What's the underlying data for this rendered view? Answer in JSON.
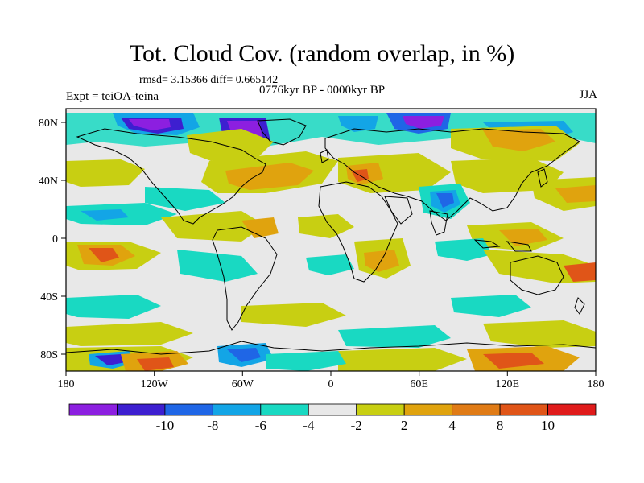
{
  "title": "Tot. Cloud Cov. (random overlap, in %)",
  "stats": "rmsd= 3.15366 diff= 0.665142",
  "experiment": "Expt = teiOA-teina",
  "period": "0776kyr BP - 0000kyr BP",
  "season": "JJA",
  "lon_ticks": [
    "180",
    "120W",
    "60W",
    "0",
    "60E",
    "120E",
    "180"
  ],
  "lat_ticks": [
    "80N",
    "40N",
    "0",
    "40S",
    "80S"
  ],
  "colorbar": {
    "labels": [
      "-10",
      "-8",
      "-6",
      "-4",
      "-2",
      "2",
      "4",
      "8",
      "10"
    ],
    "colors": [
      "#8c1fe0",
      "#3d1fd0",
      "#1f66e6",
      "#13a5e6",
      "#19d9c2",
      "#e8e8e8",
      "#c8cf12",
      "#e0a30e",
      "#e07b16",
      "#e05518",
      "#e01b1b"
    ]
  },
  "colors": {
    "background_field": "#e8e8e8",
    "coastline": "#000000"
  }
}
